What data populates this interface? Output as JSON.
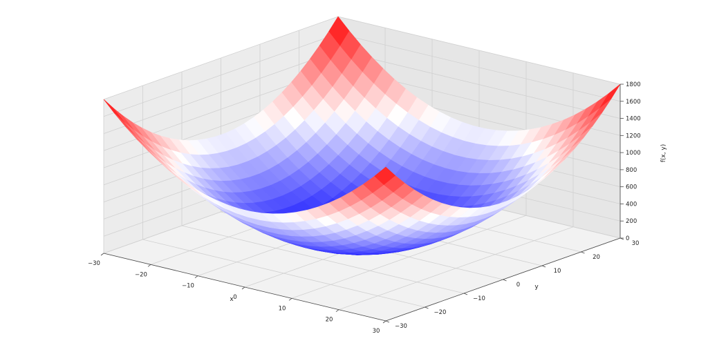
{
  "chart_data": {
    "type": "surface3d",
    "function": "f(x, y) = x^2 + y^2",
    "colormap": "bwr",
    "grid": true,
    "x": {
      "label": "x",
      "range": [
        -30,
        30
      ],
      "ticks": [
        "−30",
        "−20",
        "−10",
        "0",
        "10",
        "20",
        "30"
      ]
    },
    "y": {
      "label": "y",
      "range": [
        -30,
        30
      ],
      "ticks": [
        "−30",
        "−20",
        "−10",
        "0",
        "10",
        "20",
        "30"
      ]
    },
    "z": {
      "label": "f(x, y)",
      "range": [
        0,
        1800
      ],
      "ticks": [
        "0",
        "200",
        "400",
        "600",
        "800",
        "1000",
        "1200",
        "1400",
        "1600",
        "1800"
      ]
    },
    "surface_samples": {
      "xy_min": -30,
      "xy_max": 30,
      "steps": 25,
      "z_min": 0,
      "z_max": 1800
    }
  }
}
